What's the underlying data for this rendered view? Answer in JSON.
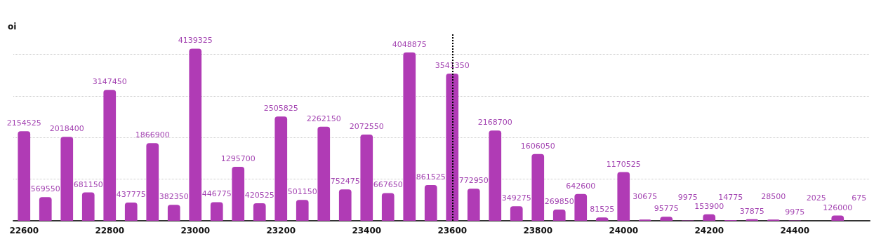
{
  "chart_data": {
    "type": "bar",
    "ylabel": "oi",
    "categories": [
      "22600",
      null,
      null,
      null,
      "22800",
      null,
      null,
      null,
      "23000",
      null,
      null,
      null,
      "23200",
      null,
      null,
      null,
      "23400",
      null,
      null,
      null,
      "23600",
      null,
      null,
      null,
      "23800",
      null,
      null,
      null,
      "24000",
      null,
      null,
      null,
      "24200",
      null,
      null,
      null,
      "24400",
      null,
      null,
      null
    ],
    "values": [
      2154525,
      569550,
      2018400,
      681150,
      3147450,
      437775,
      1866900,
      382350,
      4139325,
      446775,
      1295700,
      420525,
      2505825,
      501150,
      2262150,
      752475,
      2072550,
      667650,
      4048875,
      861525,
      3541350,
      772950,
      2168700,
      349275,
      1606050,
      269850,
      642600,
      81525,
      1170525,
      30675,
      95775,
      9975,
      153900,
      14775,
      37875,
      28500,
      9975,
      2025,
      126000,
      675
    ],
    "color": "#b03bb5",
    "data_labels": true,
    "ylim": [
      0,
      4500000
    ],
    "yticks": [
      {
        "value": 0,
        "label": null
      },
      {
        "value": 1000000,
        "label": null
      },
      {
        "value": 2000000,
        "label": null
      },
      {
        "value": 3000000,
        "label": null
      },
      {
        "value": 4000000,
        "label": null
      }
    ],
    "tick_labels": "x",
    "grid": "y",
    "ref_lines": [
      {
        "axis": "x",
        "value": "23600",
        "color": "#000000",
        "line_style": "dotted"
      }
    ]
  }
}
